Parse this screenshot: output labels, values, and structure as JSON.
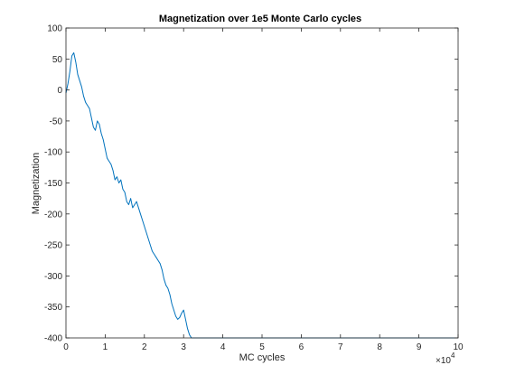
{
  "chart_data": {
    "type": "line",
    "title": "Magnetization over 1e5 Monte Carlo cycles",
    "xlabel": "MC cycles",
    "ylabel": "Magnetization",
    "xlim": [
      0,
      10
    ],
    "ylim": [
      -400,
      100
    ],
    "x_exponent_label": "×10",
    "x_exponent_power": "4",
    "x_ticks": [
      "0",
      "1",
      "2",
      "3",
      "4",
      "5",
      "6",
      "7",
      "8",
      "9",
      "10"
    ],
    "y_ticks": [
      "100",
      "50",
      "0",
      "-50",
      "-100",
      "-150",
      "-200",
      "-250",
      "-300",
      "-350",
      "-400"
    ],
    "grid": false,
    "line_color": "#0072BD",
    "series": [
      {
        "x": [
          0,
          0.05,
          0.1,
          0.15,
          0.2,
          0.25,
          0.3,
          0.35,
          0.4,
          0.45,
          0.5,
          0.55,
          0.6,
          0.65,
          0.7,
          0.75,
          0.8,
          0.85,
          0.9,
          0.95,
          1.0,
          1.05,
          1.1,
          1.15,
          1.2,
          1.25,
          1.3,
          1.35,
          1.4,
          1.45,
          1.5,
          1.55,
          1.6,
          1.65,
          1.7,
          1.75,
          1.8,
          1.85,
          1.9,
          1.95,
          2.0,
          2.05,
          2.1,
          2.15,
          2.2,
          2.25,
          2.3,
          2.35,
          2.4,
          2.45,
          2.5,
          2.55,
          2.6,
          2.65,
          2.7,
          2.75,
          2.8,
          2.85,
          2.9,
          2.95,
          3.0,
          3.05,
          3.1,
          3.15,
          3.2,
          3.3,
          3.5,
          4.0,
          4.5,
          5.0,
          5.5,
          6.0,
          6.3,
          6.5,
          7.0,
          7.5,
          8.0,
          8.5,
          9.0,
          9.5,
          10.0
        ],
        "y": [
          -5,
          10,
          30,
          55,
          60,
          45,
          25,
          15,
          5,
          -10,
          -20,
          -25,
          -30,
          -45,
          -60,
          -65,
          -50,
          -55,
          -70,
          -80,
          -95,
          -110,
          -115,
          -120,
          -130,
          -145,
          -140,
          -150,
          -145,
          -160,
          -165,
          -180,
          -185,
          -175,
          -190,
          -185,
          -180,
          -190,
          -200,
          -210,
          -220,
          -230,
          -240,
          -250,
          -260,
          -265,
          -270,
          -275,
          -280,
          -290,
          -305,
          -315,
          -320,
          -330,
          -345,
          -355,
          -365,
          -370,
          -367,
          -360,
          -355,
          -370,
          -385,
          -395,
          -400,
          -400,
          -400,
          -400,
          -400,
          -400,
          -400,
          -400,
          -400,
          -400,
          -400,
          -400,
          -400,
          -400,
          -400,
          -400,
          -400
        ]
      }
    ]
  }
}
